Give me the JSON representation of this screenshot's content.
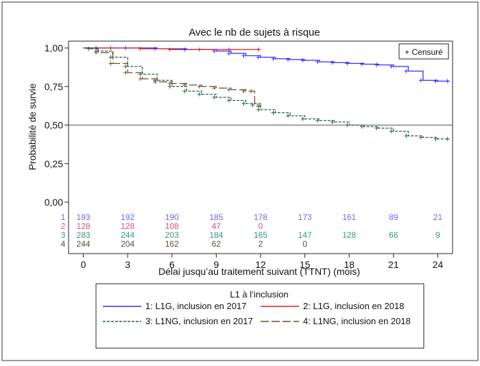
{
  "chart_data": {
    "type": "line",
    "subtype": "kaplan-meier",
    "title": "Avec le nb de sujets à risque",
    "xlabel": "Délai jusqu’au traitement suivant (TTNT) (mois)",
    "ylabel": "Probabilité de survie",
    "xlim": [
      -1,
      25
    ],
    "ylim": [
      0,
      1
    ],
    "x_ticks": [
      0,
      3,
      6,
      9,
      12,
      15,
      18,
      21,
      24
    ],
    "y_ticks": [
      0,
      0.25,
      0.5,
      0.75,
      1.0
    ],
    "y_tick_labels": [
      "0,00",
      "0,25",
      "0,50",
      "0,75",
      "1,00"
    ],
    "reference_line_y": 0.5,
    "censor_legend": "+ Censuré",
    "legend": {
      "title": "L1 à l’inclusion",
      "placement": "bottom",
      "entries": [
        "1: L1G, inclusion en 2017",
        "2: L1G, inclusion en 2018",
        "3: L1NG, inclusion en 2017",
        "4: L1NG, inclusion en 2018"
      ]
    },
    "series": [
      {
        "name": "1: L1G, inclusion en 2017",
        "risk_label": "1",
        "color": "#2b2bff",
        "dash": "solid",
        "x": [
          0,
          1,
          3,
          5,
          7,
          9,
          10,
          11,
          12,
          13,
          14,
          15,
          16,
          17,
          18,
          19,
          20,
          21,
          22,
          23,
          24,
          24.8
        ],
        "y": [
          1.0,
          1.0,
          1.0,
          0.995,
          0.99,
          0.98,
          0.965,
          0.95,
          0.94,
          0.93,
          0.925,
          0.92,
          0.91,
          0.905,
          0.9,
          0.895,
          0.89,
          0.88,
          0.85,
          0.79,
          0.785,
          0.785
        ],
        "at_risk": [
          "193",
          "192",
          "190",
          "185",
          "178",
          "173",
          "161",
          "89",
          "21"
        ]
      },
      {
        "name": "2: L1G, inclusion en 2018",
        "risk_label": "2",
        "color": "#d81e1e",
        "dash": "solid",
        "x": [
          0,
          2,
          4,
          6,
          8,
          10,
          12
        ],
        "y": [
          1.0,
          1.0,
          0.995,
          0.99,
          0.99,
          0.99,
          0.99
        ],
        "at_risk": [
          "128",
          "128",
          "108",
          "47",
          "0"
        ]
      },
      {
        "name": "3: L1NG, inclusion en 2017",
        "risk_label": "3",
        "color": "#1f5f45",
        "dash": "dashed",
        "x": [
          0,
          0.5,
          1,
          2,
          3,
          4,
          5,
          6,
          7,
          8,
          9,
          10,
          11,
          12,
          13,
          14,
          15,
          16,
          17,
          18,
          19,
          20,
          21,
          22,
          23,
          24,
          24.8
        ],
        "y": [
          1.0,
          0.995,
          0.98,
          0.94,
          0.88,
          0.83,
          0.79,
          0.75,
          0.72,
          0.7,
          0.68,
          0.66,
          0.64,
          0.6,
          0.58,
          0.56,
          0.54,
          0.53,
          0.52,
          0.5,
          0.49,
          0.48,
          0.46,
          0.43,
          0.42,
          0.41,
          0.41
        ],
        "at_risk": [
          "283",
          "244",
          "203",
          "184",
          "165",
          "147",
          "128",
          "66",
          "9"
        ]
      },
      {
        "name": "4: L1NG, inclusion en 2018",
        "risk_label": "4",
        "color": "#6b4a2a",
        "dash": "longdash",
        "x": [
          0,
          1,
          2,
          3,
          4,
          5,
          6,
          7,
          8,
          9,
          10,
          11,
          11.5,
          11.6,
          12
        ],
        "y": [
          1.0,
          0.97,
          0.9,
          0.84,
          0.8,
          0.78,
          0.77,
          0.76,
          0.75,
          0.74,
          0.73,
          0.72,
          0.72,
          0.63,
          0.62
        ],
        "at_risk": [
          "244",
          "204",
          "162",
          "62",
          "2",
          "0"
        ]
      }
    ],
    "risk_label_colors": [
      "#6a6aee",
      "#e04a8a",
      "#2f9a72",
      "#5a4a3a"
    ]
  }
}
